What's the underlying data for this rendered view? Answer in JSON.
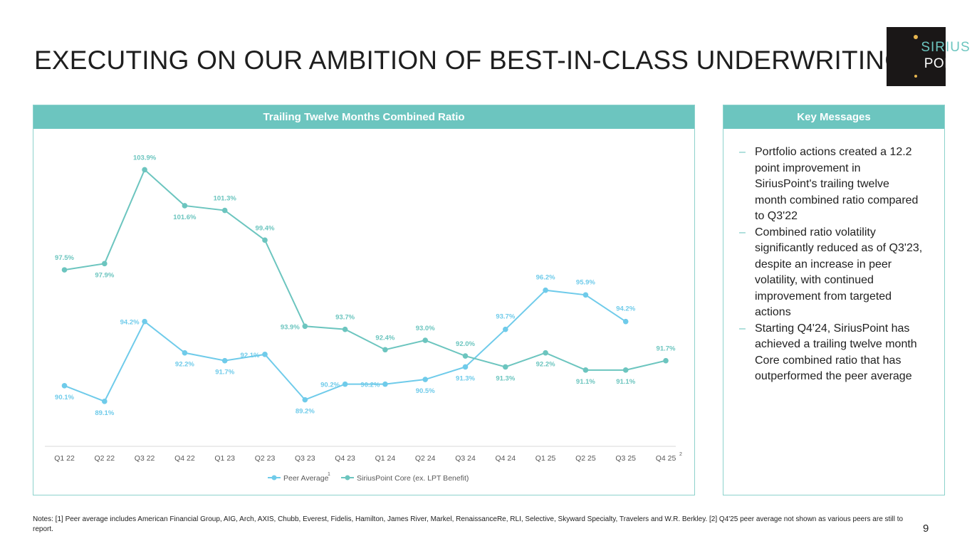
{
  "title": "EXECUTING ON OUR AMBITION OF BEST-IN-CLASS UNDERWRITING",
  "logo": {
    "line1": "SIRIUS",
    "line2": "POINT"
  },
  "chart_panel": {
    "header": "Trailing Twelve Months Combined Ratio"
  },
  "messages_panel": {
    "header": "Key Messages",
    "items": [
      "Portfolio actions created a 12.2 point improvement in SiriusPoint's trailing twelve month combined ratio compared to Q3'22",
      "Combined ratio volatility significantly reduced as of Q3'23, despite an increase in peer volatility, with continued improvement from targeted actions",
      "Starting Q4'24, SiriusPoint has achieved a trailing twelve month Core combined ratio that has outperformed the peer average"
    ]
  },
  "footnote": "Notes: [1] Peer average includes American Financial Group, AIG, Arch, AXIS, Chubb, Everest, Fidelis, Hamilton, James River, Markel, RenaissanceRe, RLI, Selective, Skyward Specialty, Travelers and W.R. Berkley. [2] Q4'25 peer average not shown as various peers are still to report.",
  "page_number": "9",
  "colors": {
    "peer": "#6fcbea",
    "core": "#6cc5bf",
    "header": "#6cc5bf",
    "axis": "#d9d9d9",
    "tick": "#595959"
  },
  "chart_data": {
    "type": "line",
    "categories": [
      "Q1 22",
      "Q2 22",
      "Q3 22",
      "Q4 22",
      "Q1 23",
      "Q2 23",
      "Q3 23",
      "Q4 23",
      "Q1 24",
      "Q2 24",
      "Q3 24",
      "Q4 24",
      "Q1 25",
      "Q2 25",
      "Q3 25",
      "Q4 25"
    ],
    "category_superscripts": {
      "Q4 25": "2"
    },
    "series": [
      {
        "name": "Peer Average",
        "superscript": "1",
        "values": [
          90.1,
          89.1,
          94.2,
          92.2,
          91.7,
          92.1,
          89.2,
          90.2,
          90.2,
          90.5,
          91.3,
          93.7,
          96.2,
          95.9,
          94.2,
          null
        ]
      },
      {
        "name": "SiriusPoint Core (ex. LPT Benefit)",
        "values": [
          97.5,
          97.9,
          103.9,
          101.6,
          101.3,
          99.4,
          93.9,
          93.7,
          92.4,
          93.0,
          92.0,
          91.3,
          92.2,
          91.1,
          91.1,
          91.7
        ]
      }
    ],
    "ylim": [
      88,
      104.6
    ],
    "legend": "bottom",
    "grid": false
  }
}
